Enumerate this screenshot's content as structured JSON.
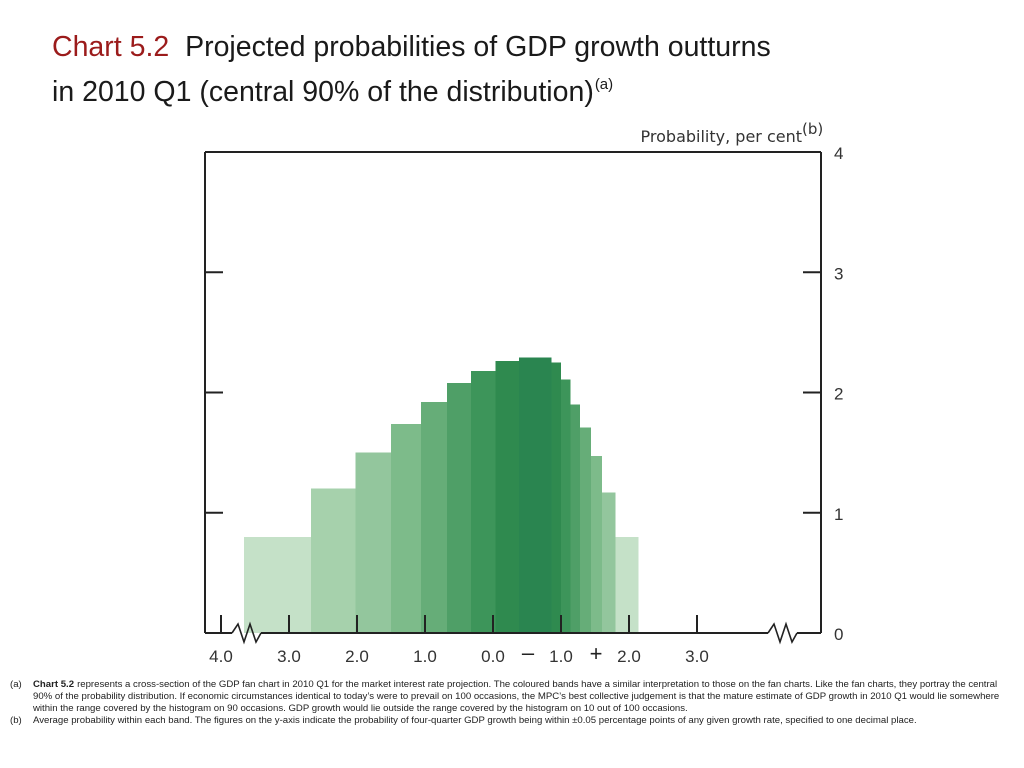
{
  "title": {
    "chart_number": "Chart 5.2",
    "line1": "Projected probabilities of GDP growth outturns",
    "line2": "in 2010 Q1 (central 90% of the distribution)",
    "superscript": "(a)"
  },
  "chart_data": {
    "type": "bar",
    "title": "Chart 5.2  Projected probabilities of GDP growth outturns in 2010 Q1 (central 90% of the distribution)",
    "ylabel": "Probability, per cent",
    "ylabel_superscript": "(b)",
    "xlabel": "",
    "ylim": [
      0,
      4
    ],
    "yticks": [
      "0",
      "1",
      "2",
      "3",
      "4"
    ],
    "xlim": [
      -4.6,
      4.8
    ],
    "xticks": [
      {
        "value": -4.0,
        "label": "4.0"
      },
      {
        "value": -3.0,
        "label": "3.0"
      },
      {
        "value": -2.0,
        "label": "2.0"
      },
      {
        "value": -1.0,
        "label": "1.0"
      },
      {
        "value": 0.0,
        "label": "0.0"
      },
      {
        "value": 1.0,
        "label": "1.0"
      },
      {
        "value": 2.0,
        "label": "2.0"
      },
      {
        "value": 3.0,
        "label": "3.0"
      }
    ],
    "sign_markers": {
      "negative": "–",
      "positive": "+"
    },
    "axis_break": true,
    "grid": false,
    "bands": [
      {
        "x0": -3.66,
        "x1": -2.68,
        "value": 0.8,
        "color": "#c5e1c8"
      },
      {
        "x0": -2.68,
        "x1": -2.02,
        "value": 1.2,
        "color": "#a6d1ac"
      },
      {
        "x0": -2.02,
        "x1": -1.5,
        "value": 1.5,
        "color": "#93c69d"
      },
      {
        "x0": -1.5,
        "x1": -1.06,
        "value": 1.74,
        "color": "#7dbb8a"
      },
      {
        "x0": -1.06,
        "x1": -0.68,
        "value": 1.92,
        "color": "#66ad78"
      },
      {
        "x0": -0.68,
        "x1": -0.32,
        "value": 2.08,
        "color": "#4f9f67"
      },
      {
        "x0": -0.32,
        "x1": 0.04,
        "value": 2.18,
        "color": "#3d955a"
      },
      {
        "x0": 0.04,
        "x1": 0.38,
        "value": 2.26,
        "color": "#2f8a4f"
      },
      {
        "x0": 0.38,
        "x1": 0.86,
        "value": 2.29,
        "color": "#2a8550"
      },
      {
        "x0": 0.86,
        "x1": 1.0,
        "value": 2.25,
        "color": "#2f8a4f"
      },
      {
        "x0": 1.0,
        "x1": 1.14,
        "value": 2.11,
        "color": "#3d955a"
      },
      {
        "x0": 1.14,
        "x1": 1.28,
        "value": 1.9,
        "color": "#4f9f67"
      },
      {
        "x0": 1.28,
        "x1": 1.44,
        "value": 1.71,
        "color": "#66ad78"
      },
      {
        "x0": 1.44,
        "x1": 1.6,
        "value": 1.47,
        "color": "#7dbb8a"
      },
      {
        "x0": 1.6,
        "x1": 1.8,
        "value": 1.17,
        "color": "#93c69d"
      },
      {
        "x0": 1.8,
        "x1": 2.14,
        "value": 0.8,
        "color": "#c5e1c8"
      }
    ]
  },
  "notes": [
    {
      "marker": "(a)",
      "ref": "Chart 5.2",
      "text": "represents a cross-section of the GDP fan chart in 2010 Q1 for the market interest rate projection.  The coloured bands have a similar interpretation to those on the fan charts.  Like the fan charts, they portray the central 90% of the probability distribution.  If economic circumstances identical to today’s were to prevail on 100 occasions, the MPC’s best collective judgement is that the mature estimate of GDP growth in 2010 Q1 would lie somewhere within the range covered by the histogram on 90 occasions.  GDP growth would lie outside the range covered by the histogram on 10 out of 100 occasions."
    },
    {
      "marker": "(b)",
      "ref": "",
      "text": "Average probability within each band.  The figures on the y-axis indicate the probability of four-quarter GDP growth being within ±0.05 percentage points of any given growth rate, specified to one decimal place."
    }
  ]
}
